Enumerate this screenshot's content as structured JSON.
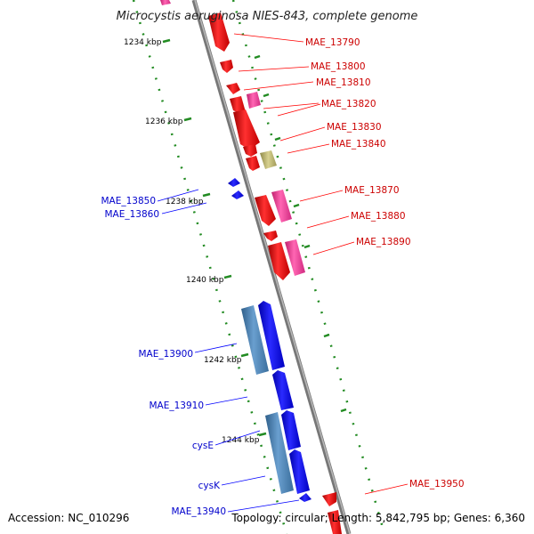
{
  "title": "Microcystis aeruginosa NIES-843, complete genome",
  "footer": {
    "accession": "Accession: NC_010296",
    "stats": "Topology: circular; Length: 5,842,795 bp; Genes: 6,360"
  },
  "ticks": [
    {
      "label": "1234 kbp"
    },
    {
      "label": "1236 kbp"
    },
    {
      "label": "1238 kbp"
    },
    {
      "label": "1240 kbp"
    },
    {
      "label": "1242 kbp"
    },
    {
      "label": "1244 kbp"
    }
  ],
  "genes_right": [
    {
      "label": "MAE_13790"
    },
    {
      "label": "MAE_13800"
    },
    {
      "label": "MAE_13810"
    },
    {
      "label": "MAE_13820"
    },
    {
      "label": "MAE_13830"
    },
    {
      "label": "MAE_13840"
    },
    {
      "label": "MAE_13870"
    },
    {
      "label": "MAE_13880"
    },
    {
      "label": "MAE_13890"
    },
    {
      "label": "MAE_13950"
    }
  ],
  "genes_left": [
    {
      "label": "MAE_13850"
    },
    {
      "label": "MAE_13860"
    },
    {
      "label": "MAE_13900"
    },
    {
      "label": "MAE_13910"
    },
    {
      "label": "cysE"
    },
    {
      "label": "cysK"
    },
    {
      "label": "MAE_13940"
    }
  ],
  "colors": {
    "forward_gene": "#ff0000",
    "forward_alt": "#ff3399",
    "reverse_gene": "#0000ff",
    "reverse_alt": "#4682b4",
    "other_feature": "#bdb76b",
    "backbone": "#808080",
    "tick_green": "#228b22",
    "label_right": "#cc0000",
    "label_left": "#0000cc"
  }
}
